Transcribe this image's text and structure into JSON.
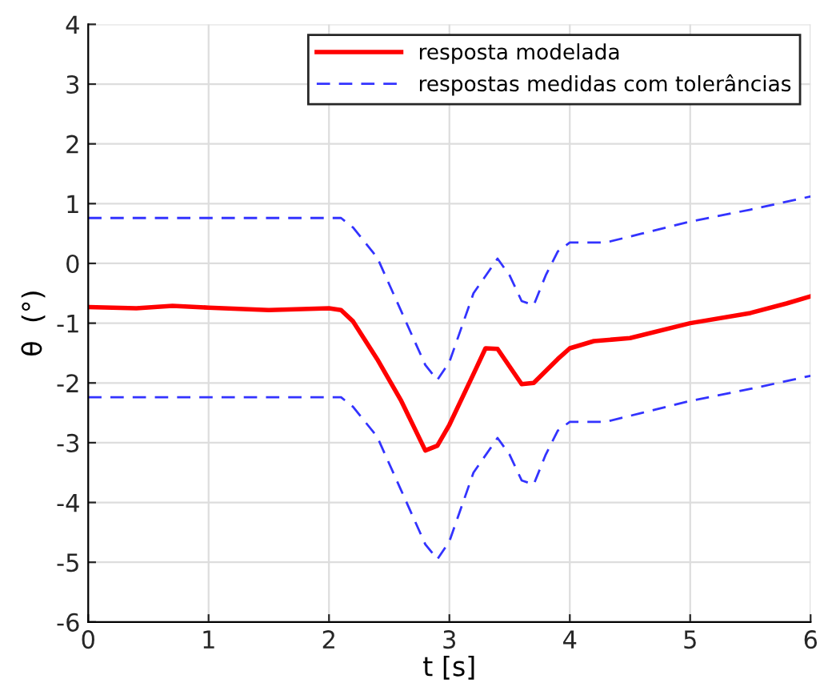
{
  "chart_data": {
    "type": "line",
    "xlabel": "t [s]",
    "ylabel": "θ  (°)",
    "xlim": [
      0,
      6
    ],
    "ylim": [
      -6,
      4
    ],
    "xticks": [
      0,
      1,
      2,
      3,
      4,
      5,
      6
    ],
    "yticks": [
      -6,
      -5,
      -4,
      -3,
      -2,
      -1,
      0,
      1,
      2,
      3,
      4
    ],
    "grid": true,
    "legend": "top right",
    "series": [
      {
        "name": "resposta modelada",
        "color": "#ff0000",
        "line_style": "solid",
        "x": [
          0,
          0.4,
          0.7,
          1.0,
          1.5,
          2.0,
          2.1,
          2.2,
          2.4,
          2.6,
          2.8,
          2.9,
          3.0,
          3.2,
          3.3,
          3.4,
          3.6,
          3.7,
          3.9,
          4.0,
          4.2,
          4.5,
          5.0,
          5.5,
          5.8,
          6.0
        ],
        "values": [
          -0.73,
          -0.75,
          -0.71,
          -0.74,
          -0.78,
          -0.75,
          -0.78,
          -0.97,
          -1.6,
          -2.3,
          -3.13,
          -3.05,
          -2.7,
          -1.85,
          -1.42,
          -1.43,
          -2.02,
          -2.0,
          -1.6,
          -1.42,
          -1.3,
          -1.25,
          -1.0,
          -0.83,
          -0.67,
          -0.55
        ]
      },
      {
        "name": "respostas medidas com tolerâncias",
        "color": "#3333ff",
        "line_style": "dashed",
        "x": [
          0,
          2.1,
          2.2,
          2.4,
          2.6,
          2.8,
          2.9,
          3.0,
          3.2,
          3.4,
          3.5,
          3.6,
          3.7,
          3.8,
          3.9,
          4.0,
          4.3,
          4.6,
          5.0,
          5.5,
          6.0
        ],
        "values": [
          0.76,
          0.76,
          0.6,
          0.1,
          -0.8,
          -1.7,
          -1.95,
          -1.65,
          -0.5,
          0.08,
          -0.2,
          -0.63,
          -0.7,
          -0.2,
          0.2,
          0.35,
          0.35,
          0.5,
          0.7,
          0.9,
          1.12
        ]
      },
      {
        "color": "#3333ff",
        "line_style": "dashed",
        "x": [
          0,
          2.1,
          2.2,
          2.4,
          2.6,
          2.8,
          2.9,
          3.0,
          3.2,
          3.4,
          3.5,
          3.6,
          3.7,
          3.8,
          3.9,
          4.0,
          4.3,
          4.6,
          5.0,
          5.5,
          6.0
        ],
        "values": [
          -2.24,
          -2.24,
          -2.4,
          -2.9,
          -3.8,
          -4.7,
          -4.95,
          -4.65,
          -3.5,
          -2.92,
          -3.2,
          -3.63,
          -3.7,
          -3.2,
          -2.8,
          -2.65,
          -2.65,
          -2.5,
          -2.3,
          -2.1,
          -1.88
        ]
      }
    ]
  }
}
